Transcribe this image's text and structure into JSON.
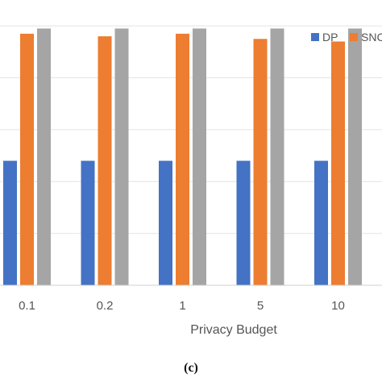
{
  "chart_data": {
    "type": "bar",
    "title": "",
    "xlabel": "Privacy Budget",
    "ylabel": "",
    "categories": [
      "0.1",
      "0.2",
      "1",
      "5",
      "10"
    ],
    "series": [
      {
        "name": "DP",
        "color": "#4472C4",
        "values": [
          0.48,
          0.48,
          0.48,
          0.48,
          0.48
        ]
      },
      {
        "name": "SNC",
        "color": "#ED7D31",
        "values": [
          0.97,
          0.96,
          0.97,
          0.95,
          0.94
        ]
      },
      {
        "name": "",
        "color": "#A5A5A5",
        "values": [
          0.99,
          0.99,
          0.99,
          0.99,
          0.99
        ]
      }
    ],
    "ylim": [
      0,
      1.1
    ],
    "grid": true,
    "legend_position": "top-right"
  },
  "caption": "(c)"
}
